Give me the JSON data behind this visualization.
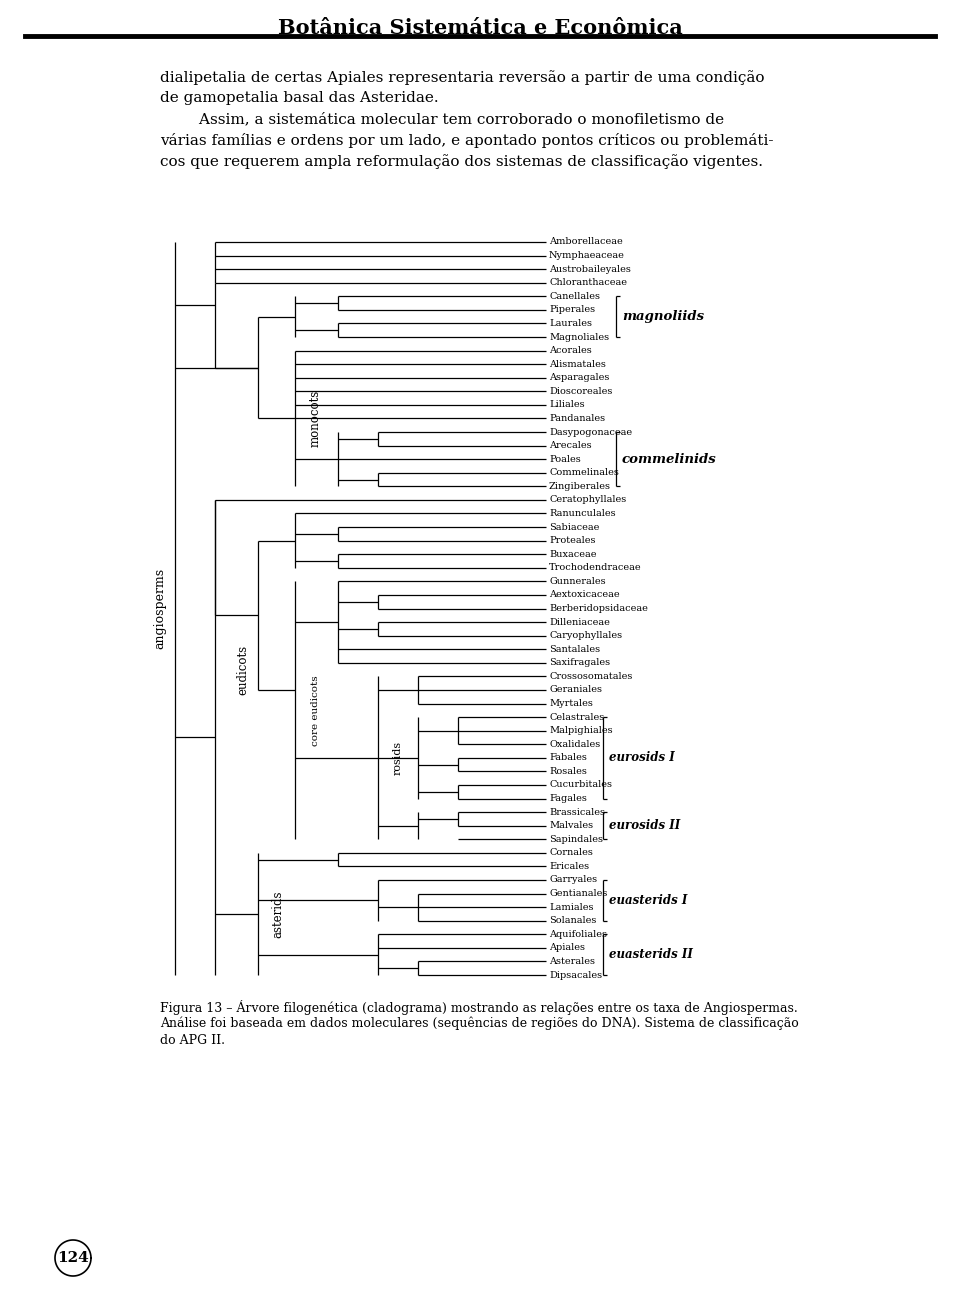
{
  "title": "Botânica Sistemática e Econômica",
  "background_color": "#ffffff",
  "text_color": "#000000",
  "page_text_lines": [
    "dialipetalia de certas Apiales representaria reversão a partir de uma condição",
    "de gamopetalia basal das Asteridae.",
    "        Assim, a sistemática molecular tem corroborado o monofiletismo de",
    "várias famílias e ordens por um lado, e apontado pontos críticos ou problemáti-",
    "cos que requerem ampla reformulação dos sistemas de classificação vigentes."
  ],
  "caption_lines": [
    "Figura 13 – Árvore filogenética (cladograma) mostrando as relações entre os taxa de Angiospermas.",
    "Análise foi baseada em dados moleculares (sequências de regiões do DNA). Sistema de classificação",
    "do APG II."
  ],
  "page_number": "124",
  "taxa": [
    "Amborellaceae",
    "Nymphaeaceae",
    "Austrobaileyales",
    "Chloranthaceae",
    "Canellales",
    "Piperales",
    "Laurales",
    "Magnoliales",
    "Acorales",
    "Alismatales",
    "Asparagales",
    "Dioscoreales",
    "Liliales",
    "Pandanales",
    "Dasypogonaceae",
    "Arecales",
    "Poales",
    "Commelinales",
    "Zingiberales",
    "Ceratophyllales",
    "Ranunculales",
    "Sabiaceae",
    "Proteales",
    "Buxaceae",
    "Trochodendraceae",
    "Gunnerales",
    "Aextoxicaceae",
    "Berberidopsidaceae",
    "Dilleniaceae",
    "Caryophyllales",
    "Santalales",
    "Saxifragales",
    "Crossosomatales",
    "Geraniales",
    "Myrtales",
    "Celastrales",
    "Malpighiales",
    "Oxalidales",
    "Fabales",
    "Rosales",
    "Cucurbitales",
    "Fagales",
    "Brassicales",
    "Malvales",
    "Sapindales",
    "Cornales",
    "Ericales",
    "Garryales",
    "Gentianales",
    "Lamiales",
    "Solanales",
    "Aquifoliales",
    "Apiales",
    "Asterales",
    "Dipsacales"
  ]
}
